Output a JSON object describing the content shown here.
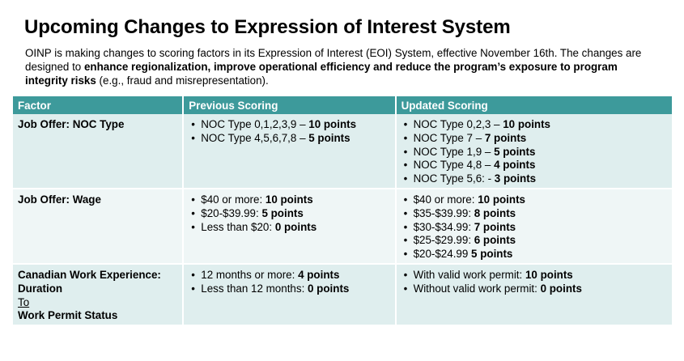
{
  "title": "Upcoming Changes to Expression of Interest System",
  "intro": {
    "plain1": "OINP is making changes to scoring factors in its Expression of Interest (EOI) System, effective November 16th.  The changes are designed to ",
    "bold": "enhance regionalization, improve operational efficiency and reduce the program’s exposure to program integrity risks",
    "plain2": " (e.g., fraud and misrepresentation)."
  },
  "table": {
    "headers": [
      "Factor",
      "Previous Scoring",
      "Updated Scoring"
    ],
    "rows": [
      {
        "factor": "Job Offer: NOC Type",
        "previous": [
          {
            "text": "NOC Type 0,1,2,3,9 – ",
            "points": "10 points"
          },
          {
            "text": "NOC Type 4,5,6,7,8 – ",
            "points": "5 points"
          }
        ],
        "updated": [
          {
            "text": "NOC Type 0,2,3 – ",
            "points": "10 points"
          },
          {
            "text": "NOC Type 7 – ",
            "points": "7 points"
          },
          {
            "text": "NOC Type 1,9 – ",
            "points": "5 points"
          },
          {
            "text": "NOC Type 4,8 – ",
            "points": "4 points"
          },
          {
            "text": "NOC Type 5,6: - ",
            "points": "3 points"
          }
        ]
      },
      {
        "factor": "Job Offer: Wage",
        "previous": [
          {
            "text": "$40 or more: ",
            "points": "10 points"
          },
          {
            "text": "$20-$39.99: ",
            "points": "5 points"
          },
          {
            "text": "Less than $20: ",
            "points": "0 points"
          }
        ],
        "updated": [
          {
            "text": "$40 or more: ",
            "points": "10 points"
          },
          {
            "text": "$35-$39.99: ",
            "points": "8 points"
          },
          {
            "text": "$30-$34.99: ",
            "points": "7 points"
          },
          {
            "text": "$25-$29.99: ",
            "points": "6 points"
          },
          {
            "text": "$20-$24.99 ",
            "points": "5 points"
          }
        ]
      },
      {
        "factor_line1": "Canadian Work Experience:",
        "factor_line2": "Duration",
        "factor_line3": "To",
        "factor_line4": "Work Permit Status",
        "previous": [
          {
            "text": "12 months or more: ",
            "points": "4 points"
          },
          {
            "text": "Less than 12 months: ",
            "points": "0 points"
          }
        ],
        "updated": [
          {
            "text": "With valid work permit: ",
            "points": "10 points"
          },
          {
            "text": "Without valid work permit: ",
            "points": "0 points"
          }
        ]
      }
    ]
  }
}
